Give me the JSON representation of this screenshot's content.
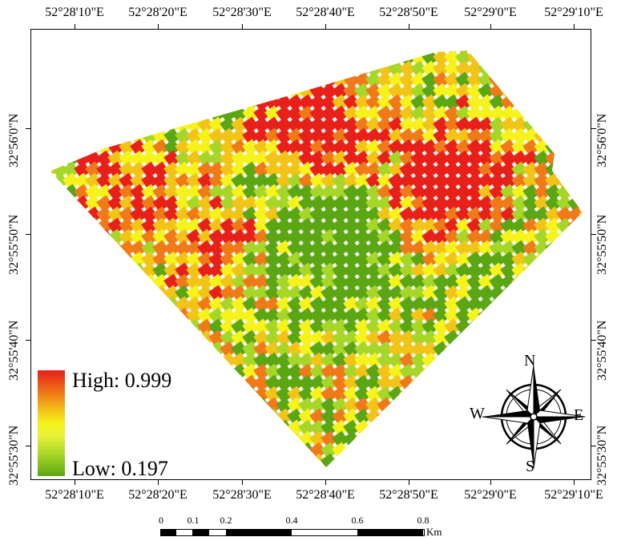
{
  "graticule": {
    "longitude_top": [
      "52°28'10\"E",
      "52°28'20\"E",
      "52°28'30\"E",
      "52°28'40\"E",
      "52°28'50\"E",
      "52°29'0\"E",
      "52°29'10\"E"
    ],
    "longitude_bottom": [
      "52°28'10\"E",
      "52°28'20\"E",
      "52°28'30\"E",
      "52°28'40\"E",
      "52°28'50\"E",
      "52°29'0\"E",
      "52°29'10\"E"
    ],
    "latitude_left": [
      "32°56'0\"N",
      "32°55'50\"N",
      "32°55'40\"N",
      "32°55'30\"N"
    ],
    "latitude_right": [
      "32°56'0\"N",
      "32°55'50\"N",
      "32°55'40\"N",
      "32°55'30\"N"
    ]
  },
  "legend": {
    "high_label": "High: 0.999",
    "low_label": "Low: 0.197",
    "high_value": 0.999,
    "low_value": 0.197,
    "colors": [
      "#e8201a",
      "#f07a18",
      "#f3c418",
      "#f6f21c",
      "#a6d628",
      "#5aa613"
    ]
  },
  "compass": {
    "north": "N",
    "south": "S",
    "east": "E",
    "west": "W",
    "icon": "compass-rose-icon"
  },
  "scale_bar": {
    "labels": [
      "0",
      "0.1",
      "0.2",
      "0.4",
      "0.6",
      "0.8"
    ],
    "unit": "Km"
  }
}
